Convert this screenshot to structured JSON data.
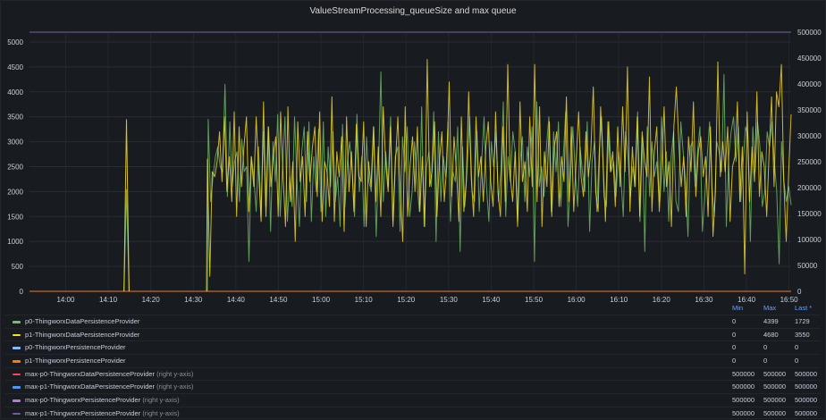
{
  "panel": {
    "title": "ValueStreamProcessing_queueSize and max queue"
  },
  "legend": {
    "headers": {
      "min": "Min",
      "max": "Max",
      "last": "Last *"
    },
    "rows": [
      {
        "name": "p0-ThingworxDataPersistenceProvider",
        "suffix": "",
        "color": "#73bf69",
        "min": "0",
        "max": "4399",
        "last": "1729"
      },
      {
        "name": "p1-ThingworxDataPersistenceProvider",
        "suffix": "",
        "color": "#fade2a",
        "min": "0",
        "max": "4680",
        "last": "3550"
      },
      {
        "name": "p0-ThingworxPersistenceProvider",
        "suffix": "",
        "color": "#8ab8ff",
        "min": "0",
        "max": "0",
        "last": "0"
      },
      {
        "name": "p1-ThingworxPersistenceProvider",
        "suffix": "",
        "color": "#ff780a",
        "min": "0",
        "max": "0",
        "last": "0"
      },
      {
        "name": "max-p0-ThingworxDataPersistenceProvider",
        "suffix": "(right y-axis)",
        "color": "#f2495c",
        "min": "500000",
        "max": "500000",
        "last": "500000"
      },
      {
        "name": "max-p1-ThingworxDataPersistenceProvider",
        "suffix": "(right y-axis)",
        "color": "#5794f2",
        "min": "500000",
        "max": "500000",
        "last": "500000"
      },
      {
        "name": "max-p0-ThingworxPersistenceProvider",
        "suffix": "(right y-axis)",
        "color": "#b877d9",
        "min": "500000",
        "max": "500000",
        "last": "500000"
      },
      {
        "name": "max-p1-ThingworxPersistenceProvider",
        "suffix": "(right y-axis)",
        "color": "#705da0",
        "min": "500000",
        "max": "500000",
        "last": "500000"
      }
    ]
  },
  "chart_data": {
    "type": "line",
    "title": "ValueStreamProcessing_queueSize and max queue",
    "xlabel": "",
    "ylabel": "",
    "x_ticks": [
      "14:00",
      "14:10",
      "14:20",
      "14:30",
      "14:40",
      "14:50",
      "15:00",
      "15:10",
      "15:20",
      "15:30",
      "15:40",
      "15:50",
      "16:00",
      "16:10",
      "16:20",
      "16:30",
      "16:40",
      "16:50"
    ],
    "y_left_ticks": [
      0,
      500,
      1000,
      1500,
      2000,
      2500,
      3000,
      3500,
      4000,
      4500,
      5000
    ],
    "y_right_ticks": [
      0,
      50000,
      100000,
      150000,
      200000,
      250000,
      300000,
      350000,
      400000,
      450000,
      500000
    ],
    "ylim_left": [
      0,
      5200
    ],
    "ylim_right": [
      0,
      520000
    ],
    "x_range_minutes": [
      -8.5,
      170.5
    ],
    "x_origin": "14:00",
    "grid": true,
    "legend_position": "bottom",
    "series": [
      {
        "name": "p0-ThingworxDataPersistenceProvider",
        "axis": "left",
        "color": "#73bf69",
        "spikes": [
          {
            "t": 14.3,
            "v": 2050
          }
        ],
        "start_minute": 33.5,
        "values": [
          3450,
          1800,
          2300,
          2700,
          2900,
          2500,
          2400,
          4150,
          1900,
          3400,
          2100,
          2600,
          2800,
          1800,
          3050,
          2400,
          2500,
          600,
          2700,
          2300,
          1600,
          2900,
          1500,
          3200,
          1700,
          3300,
          1200,
          3000,
          2200,
          3550,
          1500,
          2500,
          3500,
          1400,
          2300,
          1700,
          3500,
          2200,
          1300,
          2800,
          3300,
          1800,
          3400,
          1400,
          2700,
          2000,
          3250,
          1600,
          3400,
          1500,
          2900,
          2100,
          3200,
          1800,
          2300,
          1300,
          3350,
          1700,
          2600,
          3000,
          2400,
          1500,
          3550,
          2000,
          2700,
          1300,
          3100,
          2200,
          2000,
          3300,
          1100,
          2500,
          4400,
          1800,
          2800,
          2100,
          3500,
          1400,
          2700,
          2900,
          1200,
          3100,
          2400,
          3300,
          1500,
          2000,
          3000,
          2200,
          1600,
          3700,
          1300,
          2500,
          2800,
          2100,
          3600,
          1000,
          3200,
          1800,
          2700,
          2300,
          3400,
          1400,
          2400,
          2200,
          3300,
          800,
          2900,
          1700,
          2500,
          3500,
          2000,
          1800,
          3200,
          1600,
          2600,
          3500,
          2100,
          1400,
          3000,
          2500,
          3200,
          1800,
          2400,
          3800,
          1500,
          2700,
          2200,
          3200,
          2800,
          1400,
          2600,
          3100,
          1800,
          2900,
          2300,
          3300,
          600,
          3800,
          2100,
          2500,
          1900,
          2900,
          3500,
          1600,
          3200,
          2400,
          3400,
          1700,
          2700,
          3600,
          1300,
          2200,
          3300,
          2400,
          1700,
          2900,
          2400,
          2000,
          3400,
          1200,
          2600,
          3000,
          1600,
          2800,
          3500,
          1900,
          1700,
          3400,
          2400,
          2600,
          1900,
          2800,
          2300,
          1500,
          3200,
          2700,
          1900,
          2500,
          2100,
          3600,
          1400,
          3100,
          800,
          3300,
          1900,
          3000,
          2300,
          2600,
          1800,
          3500,
          2000,
          2800,
          1400,
          2700,
          3200,
          1800,
          1600,
          3400,
          2800,
          2200,
          1100,
          2900,
          3000,
          2100,
          2800,
          3300,
          1200,
          1900,
          2700,
          3400,
          2100,
          1500,
          3000,
          2800,
          2400,
          4350,
          1300,
          2700,
          3200,
          3500,
          2600,
          3300,
          1800,
          2600,
          3300,
          3100,
          1000,
          3300,
          2400,
          3400,
          2900,
          1700,
          2000,
          3200,
          2900,
          3400,
          2600,
          2000,
          550,
          3000,
          2200,
          1800,
          2100,
          1729
        ]
      },
      {
        "name": "p1-ThingworxDataPersistenceProvider",
        "axis": "left",
        "color": "#fade2a",
        "spikes": [
          {
            "t": 14.3,
            "v": 3450
          }
        ],
        "start_minute": 33.3,
        "values": [
          2650,
          300,
          2400,
          2300,
          2600,
          3200,
          2200,
          3500,
          2000,
          2700,
          1800,
          3600,
          1500,
          3300,
          2100,
          2900,
          3500,
          1600,
          2700,
          2100,
          3500,
          2400,
          1400,
          3800,
          1500,
          3300,
          2100,
          2700,
          3100,
          1500,
          3600,
          2300,
          1300,
          3700,
          1800,
          2600,
          1000,
          3400,
          2200,
          2700,
          1500,
          3200,
          2200,
          2900,
          3300,
          1900,
          3600,
          1400,
          2600,
          2400,
          1700,
          3900,
          1400,
          2800,
          2300,
          3100,
          1200,
          3500,
          2000,
          2800,
          1600,
          3350,
          2300,
          2200,
          3400,
          1300,
          2600,
          2100,
          3300,
          1800,
          2900,
          1500,
          3700,
          2600,
          2000,
          3300,
          1300,
          2600,
          3500,
          2000,
          1000,
          3700,
          1500,
          2500,
          3100,
          2000,
          3300,
          1600,
          2700,
          1300,
          4650,
          2100,
          2400,
          3400,
          1500,
          2600,
          3200,
          1800,
          2500,
          4200,
          1900,
          3100,
          2400,
          1400,
          3500,
          1600,
          2200,
          4000,
          2300,
          1500,
          3500,
          2300,
          2700,
          1800,
          2900,
          3400,
          2200,
          1700,
          3600,
          2000,
          1500,
          3300,
          1800,
          4550,
          2300,
          1800,
          2800,
          1300,
          3800,
          2200,
          2600,
          1600,
          3500,
          2100,
          4550,
          1800,
          3700,
          1300,
          2800,
          2100,
          3400,
          1500,
          2900,
          3200,
          1700,
          2700,
          2200,
          3900,
          1800,
          3300,
          1600,
          2600,
          3600,
          2300,
          1900,
          3200,
          2300,
          2800,
          4100,
          2000,
          1600,
          3700,
          2600,
          1400,
          3400,
          2400,
          2800,
          1700,
          3300,
          2100,
          3700,
          2400,
          4500,
          1600,
          2900,
          2100,
          3500,
          1500,
          3200,
          2600,
          2300,
          4300,
          1600,
          2800,
          3300,
          1600,
          2500,
          3700,
          2100,
          2600,
          1300,
          3300,
          4100,
          3000,
          2100,
          2700,
          1500,
          3100,
          2400,
          3800,
          1900,
          2800,
          3100,
          2300,
          2700,
          1500,
          3300,
          1100,
          2000,
          4600,
          2300,
          3000,
          2400,
          3300,
          1400,
          2500,
          2700,
          3800,
          1800,
          2900,
          350,
          3600,
          1800,
          2900,
          2200,
          4000,
          1900,
          2800,
          2500,
          1500,
          2800,
          3900,
          2100,
          4000,
          3700,
          4550,
          2200,
          1000,
          2400,
          3550
        ]
      },
      {
        "name": "p0-ThingworxPersistenceProvider",
        "axis": "left",
        "color": "#8ab8ff",
        "constant": 0
      },
      {
        "name": "p1-ThingworxPersistenceProvider",
        "axis": "left",
        "color": "#ff780a",
        "constant": 0
      },
      {
        "name": "max-p0-ThingworxDataPersistenceProvider",
        "axis": "right",
        "color": "#f2495c",
        "constant": 500000
      },
      {
        "name": "max-p1-ThingworxDataPersistenceProvider",
        "axis": "right",
        "color": "#5794f2",
        "constant": 500000
      },
      {
        "name": "max-p0-ThingworxPersistenceProvider",
        "axis": "right",
        "color": "#b877d9",
        "constant": 500000
      },
      {
        "name": "max-p1-ThingworxPersistenceProvider",
        "axis": "right",
        "color": "#705da0",
        "constant": 500000
      }
    ]
  }
}
